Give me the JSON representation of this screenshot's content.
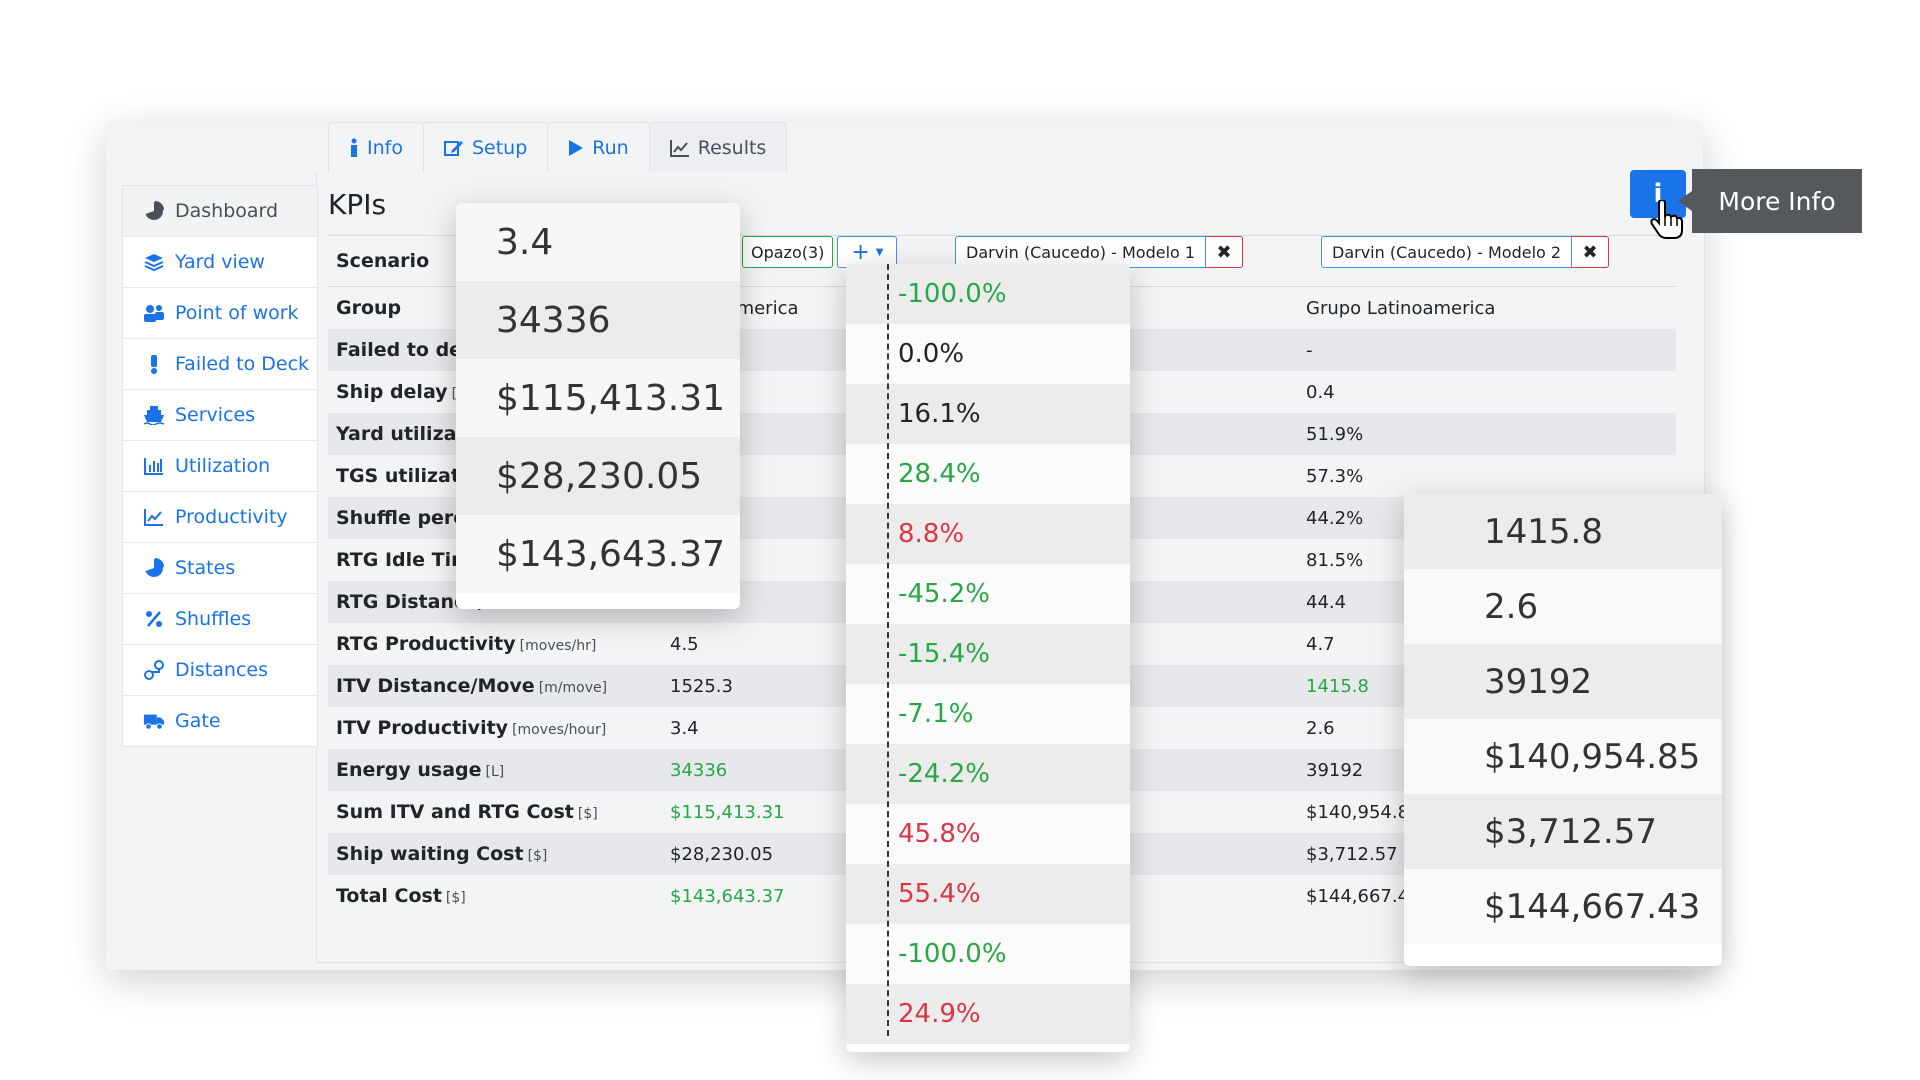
{
  "tabs": [
    {
      "label": "Info",
      "icon": "info-icon"
    },
    {
      "label": "Setup",
      "icon": "edit-icon"
    },
    {
      "label": "Run",
      "icon": "play-icon"
    },
    {
      "label": "Results",
      "icon": "line-chart-icon"
    }
  ],
  "sidebar": {
    "items": [
      {
        "label": "Dashboard",
        "icon": "pie-chart-icon"
      },
      {
        "label": "Yard view",
        "icon": "layers-icon"
      },
      {
        "label": "Point of work",
        "icon": "users-icon"
      },
      {
        "label": "Failed to Deck",
        "icon": "exclamation-icon"
      },
      {
        "label": "Services",
        "icon": "ship-icon"
      },
      {
        "label": "Utilization",
        "icon": "bar-chart-icon"
      },
      {
        "label": "Productivity",
        "icon": "line-chart-icon"
      },
      {
        "label": "States",
        "icon": "pie-chart-icon"
      },
      {
        "label": "Shuffles",
        "icon": "percent-icon"
      },
      {
        "label": "Distances",
        "icon": "route-icon"
      },
      {
        "label": "Gate",
        "icon": "truck-icon"
      }
    ]
  },
  "kpis": {
    "title": "KPIs",
    "scenario_label": "Scenario",
    "scenario_partial": "Opazo(3)",
    "add_label": "+",
    "scenario2": "Darvin (Caucedo) - Modelo 1",
    "scenario3": "Darvin (Caucedo) - Modelo 2",
    "rows": [
      {
        "label": "Group",
        "unit": "",
        "v1": "Latinoamerica",
        "v2": "Grupo Latinoamerica"
      },
      {
        "label": "Failed to deck",
        "unit": "",
        "v1": "",
        "v2": "-"
      },
      {
        "label": "Ship delay",
        "unit": "[h]",
        "v1": "",
        "v2": "0.4"
      },
      {
        "label": "Yard utilization",
        "unit": "",
        "v1": "",
        "v2": "51.9%"
      },
      {
        "label": "TGS utilization",
        "unit": "",
        "v1": "",
        "v2": "57.3%"
      },
      {
        "label": "Shuffle percentage",
        "unit": "",
        "v1": "",
        "v2": "44.2%"
      },
      {
        "label": "RTG Idle Time",
        "unit": "",
        "v1": "",
        "v2": "81.5%"
      },
      {
        "label": "RTG Distance/",
        "unit": "",
        "v1": "",
        "v2": "44.4"
      },
      {
        "label": "RTG Productivity",
        "unit": "[moves/hr]",
        "v1": "4.5",
        "v2": "4.7"
      },
      {
        "label": "ITV Distance/Move",
        "unit": "[m/move]",
        "v1": "1525.3",
        "v2": "1415.8"
      },
      {
        "label": "ITV Productivity",
        "unit": "[moves/hour]",
        "v1": "3.4",
        "v2": "2.6"
      },
      {
        "label": "Energy usage",
        "unit": "[L]",
        "v1": "34336",
        "v2": "39192"
      },
      {
        "label": "Sum ITV and RTG Cost",
        "unit": "[$]",
        "v1": "$115,413.31",
        "v2": "$140,954.8"
      },
      {
        "label": "Ship waiting Cost",
        "unit": "[$]",
        "v1": "$28,230.05",
        "v2": "$3,712.57"
      },
      {
        "label": "Total Cost",
        "unit": "[$]",
        "v1": "$143,643.37",
        "v2": "$144,667.4"
      }
    ]
  },
  "more_info": {
    "button": "i",
    "tooltip": "More Info"
  },
  "zoom_left": [
    "3.4",
    "34336",
    "$115,413.31",
    "$28,230.05",
    "$143,643.37"
  ],
  "zoom_diff": [
    "-100.0%",
    "0.0%",
    "16.1%",
    "28.4%",
    "8.8%",
    "-45.2%",
    "-15.4%",
    "-7.1%",
    "-24.2%",
    "45.8%",
    "55.4%",
    "-100.0%",
    "24.9%"
  ],
  "zoom_right": [
    "1415.8",
    "2.6",
    "39192",
    "$140,954.85",
    "$3,712.57",
    "$144,667.43"
  ],
  "colors": {
    "accent": "#1a73e8",
    "positive": "#28a745",
    "negative": "#dc3545",
    "tooltip_bg": "#55585c"
  }
}
